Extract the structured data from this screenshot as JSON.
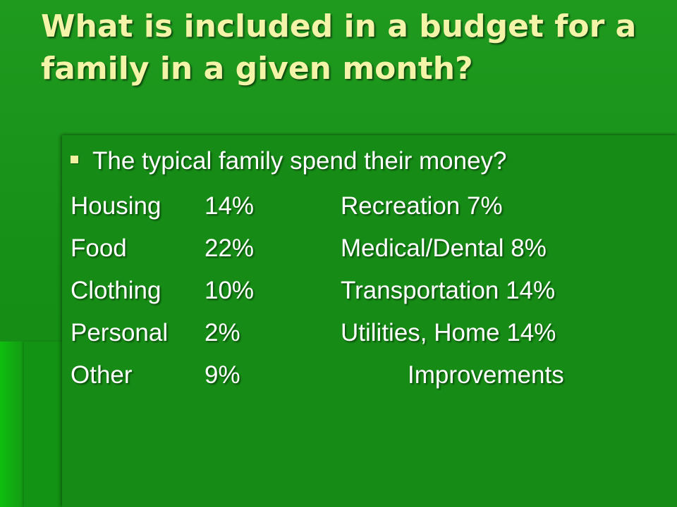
{
  "slide": {
    "title": "What is included in a budget for a family in a given month?",
    "bullet": "The typical family spend their money?",
    "rows": [
      {
        "category": "Housing",
        "percent": "14%",
        "right": "Recreation 7%"
      },
      {
        "category": "Food",
        "percent": "22%",
        "right": "Medical/Dental 8%"
      },
      {
        "category": "Clothing",
        "percent": "10%",
        "right": "Transportation 14%"
      },
      {
        "category": "Personal",
        "percent": "2%",
        "right": "Utilities, Home  14%"
      },
      {
        "category": "Other",
        "percent": "9%",
        "right": "Improvements"
      }
    ]
  },
  "colors": {
    "background": "#169416",
    "title_text": "#f4f4a8",
    "body_text": "#ffffff"
  }
}
